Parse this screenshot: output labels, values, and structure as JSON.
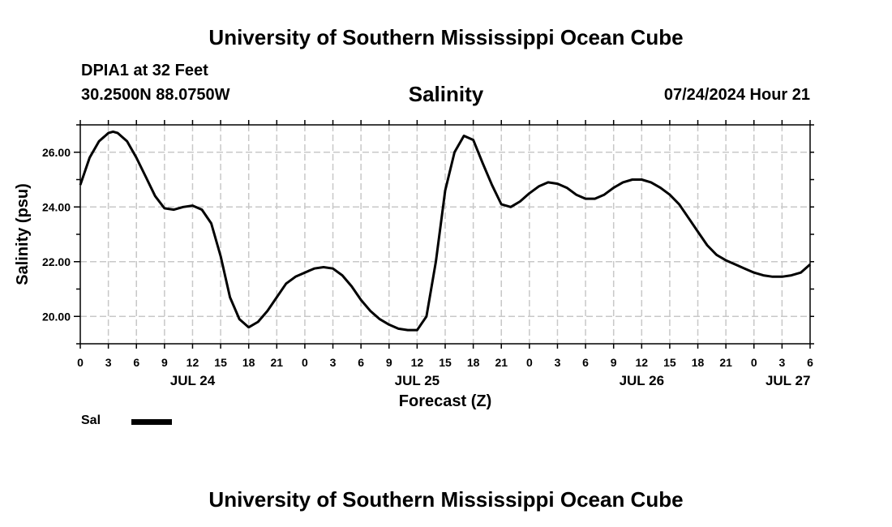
{
  "page": {
    "title_top": "University of Southern Mississippi Ocean Cube",
    "title_bottom": "University of Southern Mississippi Ocean Cube",
    "station": "DPIA1 at 32 Feet",
    "location": "30.2500N  88.0750W",
    "timestamp": "07/24/2024 Hour 21"
  },
  "chart_data": {
    "type": "line",
    "title": "Salinity",
    "xlabel": "Forecast (Z)",
    "ylabel": "Salinity (psu)",
    "ylim": [
      19,
      27
    ],
    "xlim": [
      0,
      78
    ],
    "x_unit": "hours from 2024-07-24 00Z",
    "x_ticks": [
      "0",
      "3",
      "6",
      "9",
      "12",
      "15",
      "18",
      "21",
      "0",
      "3",
      "6",
      "9",
      "12",
      "15",
      "18",
      "21",
      "0",
      "3",
      "6",
      "9",
      "12",
      "15",
      "18",
      "21",
      "0",
      "3",
      "6"
    ],
    "y_ticks": [
      "20.00",
      "22.00",
      "24.00",
      "26.00"
    ],
    "y_tick_values": [
      20,
      22,
      24,
      26
    ],
    "date_labels": [
      {
        "label": "JUL 24",
        "x": 12
      },
      {
        "label": "JUL 25",
        "x": 36
      },
      {
        "label": "JUL 26",
        "x": 60
      },
      {
        "label": "JUL 27",
        "x": 76.5
      }
    ],
    "grid": true,
    "legend": {
      "label": "Sal",
      "color": "#000000",
      "placement": "bottom-left"
    },
    "series": [
      {
        "name": "Sal",
        "color": "#000000",
        "x": [
          0,
          1,
          2,
          3,
          3.5,
          4,
          5,
          6,
          7,
          8,
          9,
          10,
          11,
          12,
          13,
          14,
          15,
          16,
          17,
          18,
          19,
          20,
          21,
          22,
          23,
          24,
          25,
          26,
          27,
          28,
          29,
          30,
          31,
          32,
          33,
          34,
          35,
          36,
          37,
          38,
          39,
          40,
          41,
          42,
          43,
          44,
          45,
          46,
          47,
          48,
          49,
          50,
          51,
          52,
          53,
          54,
          55,
          56,
          57,
          58,
          59,
          60,
          61,
          62,
          63,
          64,
          65,
          66,
          67,
          68,
          69,
          70,
          71,
          72,
          73,
          74,
          75,
          76,
          77,
          78
        ],
        "values": [
          24.8,
          25.8,
          26.4,
          26.7,
          26.75,
          26.7,
          26.4,
          25.8,
          25.1,
          24.4,
          23.95,
          23.9,
          24.0,
          24.05,
          23.9,
          23.4,
          22.2,
          20.7,
          19.9,
          19.6,
          19.8,
          20.2,
          20.7,
          21.2,
          21.45,
          21.6,
          21.75,
          21.8,
          21.75,
          21.5,
          21.1,
          20.6,
          20.2,
          19.9,
          19.7,
          19.55,
          19.5,
          19.5,
          20.0,
          22.0,
          24.6,
          26.0,
          26.6,
          26.45,
          25.6,
          24.8,
          24.1,
          24.0,
          24.2,
          24.5,
          24.75,
          24.9,
          24.85,
          24.7,
          24.45,
          24.3,
          24.3,
          24.45,
          24.7,
          24.9,
          25.0,
          25.0,
          24.9,
          24.7,
          24.45,
          24.1,
          23.6,
          23.1,
          22.6,
          22.25,
          22.05,
          21.9,
          21.75,
          21.6,
          21.5,
          21.45,
          21.45,
          21.5,
          21.6,
          21.9
        ]
      }
    ]
  }
}
